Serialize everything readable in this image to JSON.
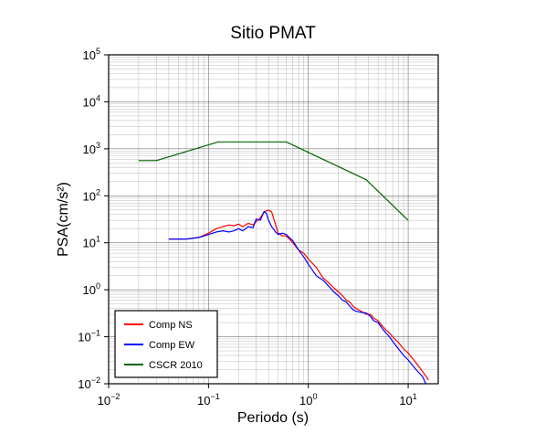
{
  "chart_data": {
    "type": "line",
    "title": "Sitio PMAT",
    "xlabel": "Periodo (s)",
    "ylabel": "PSA(cm/s²)",
    "x_scale": "log",
    "y_scale": "log",
    "xlim": [
      0.01,
      20
    ],
    "ylim": [
      0.01,
      100000
    ],
    "x_ticks": [
      {
        "base": "10",
        "exp": "−2",
        "value": 0.01
      },
      {
        "base": "10",
        "exp": "−1",
        "value": 0.1
      },
      {
        "base": "10",
        "exp": "0",
        "value": 1
      },
      {
        "base": "10",
        "exp": "1",
        "value": 10
      }
    ],
    "y_ticks": [
      {
        "base": "10",
        "exp": "−2",
        "value": 0.01
      },
      {
        "base": "10",
        "exp": "−1",
        "value": 0.1
      },
      {
        "base": "10",
        "exp": "0",
        "value": 1
      },
      {
        "base": "10",
        "exp": "1",
        "value": 10
      },
      {
        "base": "10",
        "exp": "2",
        "value": 100
      },
      {
        "base": "10",
        "exp": "3",
        "value": 1000
      },
      {
        "base": "10",
        "exp": "4",
        "value": 10000
      },
      {
        "base": "10",
        "exp": "5",
        "value": 100000
      }
    ],
    "grid": true,
    "legend_position": "bottom-left",
    "series": [
      {
        "name": "Comp NS",
        "color": "#ff0000",
        "points": [
          [
            0.04,
            12
          ],
          [
            0.06,
            12
          ],
          [
            0.08,
            13
          ],
          [
            0.1,
            16
          ],
          [
            0.12,
            20
          ],
          [
            0.14,
            22
          ],
          [
            0.16,
            24
          ],
          [
            0.18,
            23
          ],
          [
            0.2,
            25
          ],
          [
            0.22,
            22
          ],
          [
            0.25,
            26
          ],
          [
            0.28,
            24
          ],
          [
            0.3,
            28
          ],
          [
            0.33,
            34
          ],
          [
            0.36,
            45
          ],
          [
            0.4,
            50
          ],
          [
            0.43,
            45
          ],
          [
            0.47,
            24
          ],
          [
            0.5,
            16
          ],
          [
            0.55,
            14
          ],
          [
            0.6,
            14
          ],
          [
            0.7,
            10
          ],
          [
            0.8,
            7
          ],
          [
            0.9,
            6
          ],
          [
            1.0,
            4.5
          ],
          [
            1.2,
            3
          ],
          [
            1.4,
            1.8
          ],
          [
            1.6,
            1.4
          ],
          [
            1.8,
            1.1
          ],
          [
            2.0,
            0.9
          ],
          [
            2.2,
            0.75
          ],
          [
            2.4,
            0.6
          ],
          [
            2.6,
            0.55
          ],
          [
            2.8,
            0.45
          ],
          [
            3.0,
            0.4
          ],
          [
            3.4,
            0.35
          ],
          [
            3.8,
            0.3
          ],
          [
            4.2,
            0.3
          ],
          [
            4.5,
            0.25
          ],
          [
            5,
            0.22
          ],
          [
            5.5,
            0.17
          ],
          [
            6,
            0.14
          ],
          [
            6.5,
            0.12
          ],
          [
            7,
            0.1
          ],
          [
            8,
            0.075
          ],
          [
            9,
            0.055
          ],
          [
            10,
            0.045
          ],
          [
            11,
            0.035
          ],
          [
            12,
            0.028
          ],
          [
            14,
            0.018
          ],
          [
            16,
            0.012
          ]
        ]
      },
      {
        "name": "Comp EW",
        "color": "#0000ff",
        "points": [
          [
            0.04,
            12
          ],
          [
            0.06,
            12
          ],
          [
            0.08,
            13
          ],
          [
            0.1,
            15
          ],
          [
            0.12,
            17
          ],
          [
            0.14,
            18
          ],
          [
            0.16,
            17
          ],
          [
            0.18,
            18
          ],
          [
            0.2,
            20
          ],
          [
            0.22,
            18
          ],
          [
            0.25,
            22
          ],
          [
            0.28,
            21
          ],
          [
            0.3,
            32
          ],
          [
            0.33,
            30
          ],
          [
            0.36,
            46
          ],
          [
            0.38,
            42
          ],
          [
            0.4,
            30
          ],
          [
            0.43,
            22
          ],
          [
            0.47,
            17
          ],
          [
            0.5,
            15
          ],
          [
            0.55,
            16
          ],
          [
            0.6,
            15
          ],
          [
            0.7,
            11
          ],
          [
            0.8,
            7
          ],
          [
            0.9,
            5
          ],
          [
            1.0,
            3.5
          ],
          [
            1.2,
            2
          ],
          [
            1.4,
            1.6
          ],
          [
            1.6,
            1.2
          ],
          [
            1.8,
            0.9
          ],
          [
            2.0,
            0.75
          ],
          [
            2.2,
            0.6
          ],
          [
            2.4,
            0.55
          ],
          [
            2.6,
            0.45
          ],
          [
            2.8,
            0.38
          ],
          [
            3.0,
            0.35
          ],
          [
            3.4,
            0.33
          ],
          [
            3.8,
            0.32
          ],
          [
            4.2,
            0.27
          ],
          [
            4.5,
            0.22
          ],
          [
            5,
            0.2
          ],
          [
            5.5,
            0.15
          ],
          [
            6,
            0.12
          ],
          [
            6.5,
            0.1
          ],
          [
            7,
            0.08
          ],
          [
            8,
            0.055
          ],
          [
            9,
            0.04
          ],
          [
            10,
            0.032
          ],
          [
            11,
            0.025
          ],
          [
            12,
            0.02
          ],
          [
            14,
            0.014
          ],
          [
            15,
            0.01
          ]
        ]
      },
      {
        "name": "CSCR 2010",
        "color": "#006400",
        "points": [
          [
            0.02,
            560
          ],
          [
            0.03,
            560
          ],
          [
            0.125,
            1400
          ],
          [
            0.6,
            1400
          ],
          [
            3.8,
            220
          ],
          [
            10,
            30
          ]
        ]
      }
    ]
  }
}
